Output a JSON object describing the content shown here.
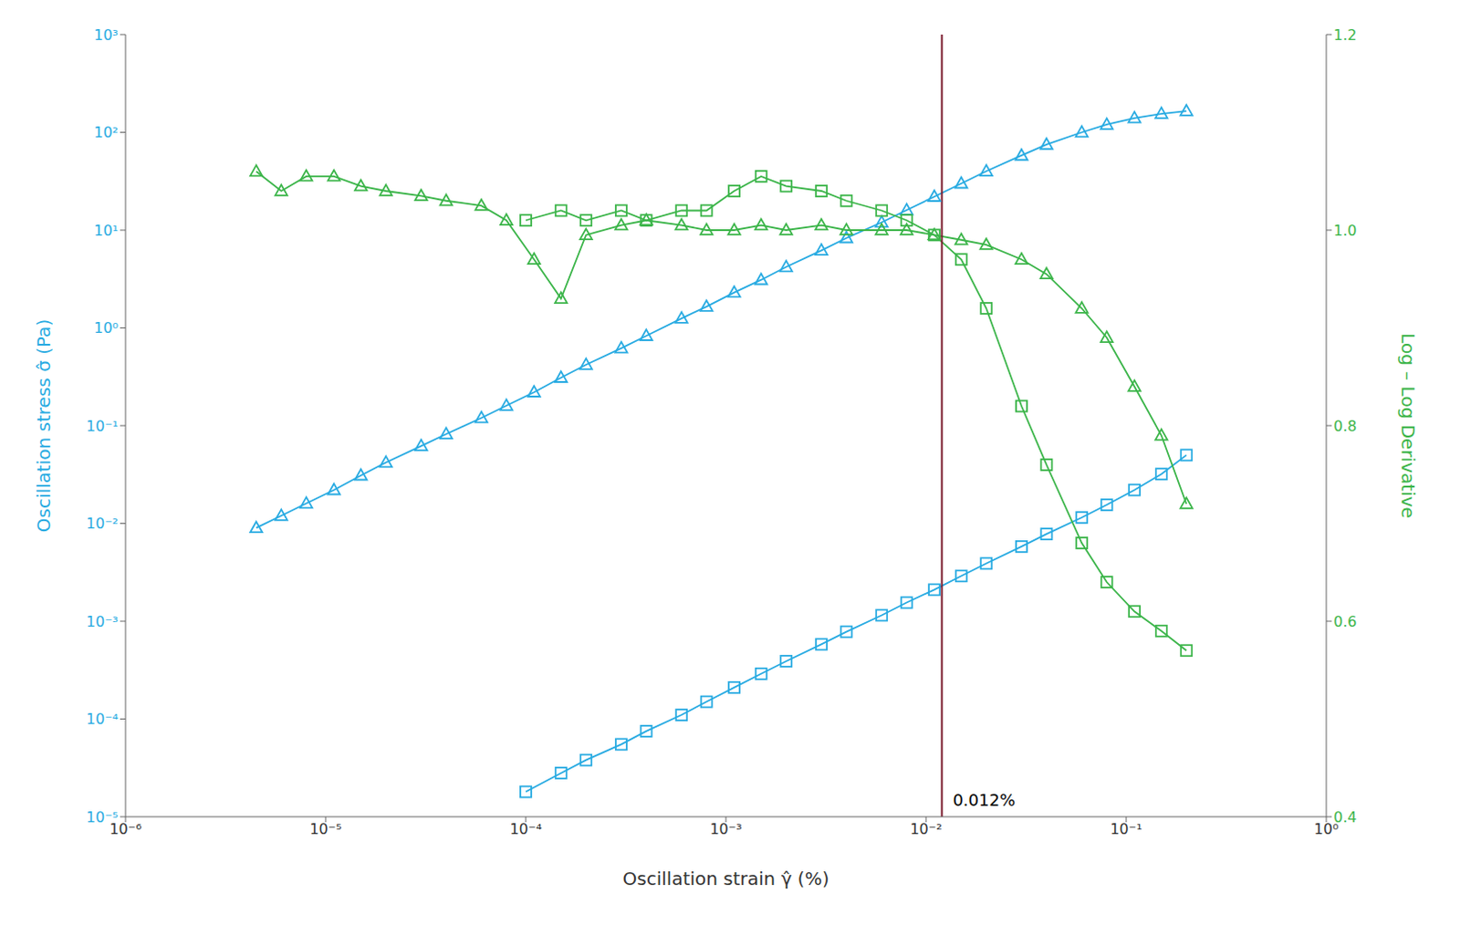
{
  "chart_data": {
    "type": "line",
    "log": true,
    "grid": false,
    "x_label": "Oscillation strain γ̂ (%)",
    "y_label": "Oscillation stress σ̂ (Pa)",
    "y2_label": "Log – Log Derivative",
    "xlim": [
      1e-06,
      1.0
    ],
    "xticks": [
      {
        "value": 1e-06,
        "label": "10⁻⁶"
      },
      {
        "value": 1e-05,
        "label": "10⁻⁵"
      },
      {
        "value": 0.0001,
        "label": "10⁻⁴"
      },
      {
        "value": 0.001,
        "label": "10⁻³"
      },
      {
        "value": 0.01,
        "label": "10⁻²"
      },
      {
        "value": 0.1,
        "label": "10⁻¹"
      },
      {
        "value": 1.0,
        "label": "10⁰"
      }
    ],
    "ylim": [
      1e-05,
      1000.0
    ],
    "yticks": [
      {
        "value": 1e-05,
        "label": "10⁻⁵"
      },
      {
        "value": 0.0001,
        "label": "10⁻⁴"
      },
      {
        "value": 0.001,
        "label": "10⁻³"
      },
      {
        "value": 0.01,
        "label": "10⁻²"
      },
      {
        "value": 0.1,
        "label": "10⁻¹"
      },
      {
        "value": 1.0,
        "label": "10⁰"
      },
      {
        "value": 10.0,
        "label": "10¹"
      },
      {
        "value": 100.0,
        "label": "10²"
      },
      {
        "value": 1000.0,
        "label": "10³"
      }
    ],
    "y2lim": [
      0.4,
      1.2
    ],
    "y2ticks": [
      0.4,
      0.6,
      0.8,
      {
        "value": 1,
        "label": "1.0"
      },
      1.2
    ],
    "annotations": [
      {
        "type": "vline",
        "x": 0.012,
        "text": "0.012%",
        "color": "#7B1C2E"
      }
    ],
    "series": [
      {
        "color": "#29ABE2",
        "marker": "triangle",
        "axis": "y",
        "x": [
          4.5e-06,
          6e-06,
          8e-06,
          1.1e-05,
          1.5e-05,
          2e-05,
          3e-05,
          4e-05,
          6e-05,
          8e-05,
          0.00011,
          0.00015,
          0.0002,
          0.0003,
          0.0004,
          0.0006,
          0.0008,
          0.0011,
          0.0015,
          0.002,
          0.003,
          0.004,
          0.006,
          0.008,
          0.011,
          0.015,
          0.02,
          0.03,
          0.04,
          0.06,
          0.08,
          0.11,
          0.15,
          0.2
        ],
        "values": [
          0.009,
          0.012,
          0.016,
          0.022,
          0.031,
          0.042,
          0.062,
          0.082,
          0.12,
          0.16,
          0.22,
          0.31,
          0.42,
          0.62,
          0.83,
          1.25,
          1.65,
          2.3,
          3.1,
          4.2,
          6.2,
          8.3,
          12.0,
          16.0,
          22.0,
          30.0,
          40.0,
          58.0,
          75.0,
          100.0,
          120.0,
          140.0,
          155.0,
          165.0
        ]
      },
      {
        "color": "#29ABE2",
        "marker": "square",
        "axis": "y",
        "x": [
          0.0001,
          0.00015,
          0.0002,
          0.0003,
          0.0004,
          0.0006,
          0.0008,
          0.0011,
          0.0015,
          0.002,
          0.003,
          0.004,
          0.006,
          0.008,
          0.011,
          0.015,
          0.02,
          0.03,
          0.04,
          0.06,
          0.08,
          0.11,
          0.15,
          0.2
        ],
        "values": [
          1.8e-05,
          2.8e-05,
          3.8e-05,
          5.5e-05,
          7.5e-05,
          0.00011,
          0.00015,
          0.00021,
          0.00029,
          0.00039,
          0.00058,
          0.00078,
          0.00115,
          0.00155,
          0.0021,
          0.0029,
          0.0039,
          0.0058,
          0.0078,
          0.0115,
          0.0155,
          0.022,
          0.032,
          0.05
        ]
      },
      {
        "color": "#3CB54A",
        "marker": "triangle",
        "axis": "y2",
        "x": [
          4.5e-06,
          6e-06,
          8e-06,
          1.1e-05,
          1.5e-05,
          2e-05,
          3e-05,
          4e-05,
          6e-05,
          8e-05,
          0.00011,
          0.00015,
          0.0002,
          0.0003,
          0.0004,
          0.0006,
          0.0008,
          0.0011,
          0.0015,
          0.002,
          0.003,
          0.004,
          0.006,
          0.008,
          0.011,
          0.015,
          0.02,
          0.03,
          0.04,
          0.06,
          0.08,
          0.11,
          0.15,
          0.2
        ],
        "values": [
          1.06,
          1.04,
          1.055,
          1.055,
          1.045,
          1.04,
          1.035,
          1.03,
          1.025,
          1.01,
          0.97,
          0.93,
          0.995,
          1.005,
          1.01,
          1.005,
          1.0,
          1.0,
          1.005,
          1.0,
          1.005,
          1.0,
          1.0,
          1.0,
          0.995,
          0.99,
          0.985,
          0.97,
          0.955,
          0.92,
          0.89,
          0.84,
          0.79,
          0.72
        ]
      },
      {
        "color": "#3CB54A",
        "marker": "square",
        "axis": "y2",
        "x": [
          0.0001,
          0.00015,
          0.0002,
          0.0003,
          0.0004,
          0.0006,
          0.0008,
          0.0011,
          0.0015,
          0.002,
          0.003,
          0.004,
          0.006,
          0.008,
          0.011,
          0.015,
          0.02,
          0.03,
          0.04,
          0.06,
          0.08,
          0.11,
          0.15,
          0.2
        ],
        "values": [
          1.01,
          1.02,
          1.01,
          1.02,
          1.01,
          1.02,
          1.02,
          1.04,
          1.055,
          1.045,
          1.04,
          1.03,
          1.02,
          1.01,
          0.995,
          0.97,
          0.92,
          0.82,
          0.76,
          0.68,
          0.64,
          0.61,
          0.59,
          0.57
        ]
      }
    ]
  }
}
